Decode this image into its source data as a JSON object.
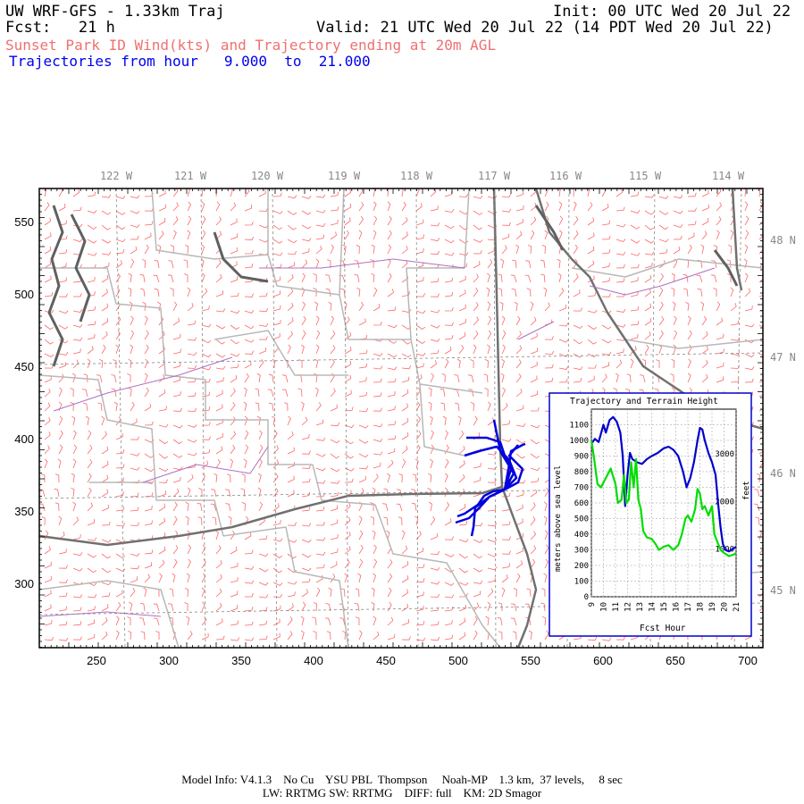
{
  "header": {
    "title": "UW WRF-GFS - 1.33km Traj",
    "init": "Init: 00 UTC Wed 20 Jul 22",
    "fcst_label": "Fcst:",
    "fcst_value": "21 h",
    "valid": "Valid: 21 UTC Wed 20 Jul 22 (14 PDT Wed 20 Jul 22)",
    "product": "Sunset Park ID Wind(kts) and Trajectory ending at 20m AGL",
    "traj_prefix": "Trajectories from hour",
    "traj_start": "9.000",
    "traj_to": "to",
    "traj_end": "21.000"
  },
  "map": {
    "lon_labels": [
      "122 W",
      "121 W",
      "120 W",
      "119 W",
      "118 W",
      "117 W",
      "116 W",
      "115 W",
      "114 W"
    ],
    "lat_labels": [
      "48 N",
      "47 N",
      "46 N",
      "45 N"
    ],
    "x_ticks": [
      "250",
      "300",
      "350",
      "400",
      "450",
      "500",
      "550",
      "600",
      "650",
      "700"
    ],
    "y_ticks": [
      "550",
      "500",
      "450",
      "400",
      "350",
      "300"
    ],
    "colors": {
      "wind_barbs": "#ff6666",
      "trajectory": "#0000dd",
      "borders": "#aaaaaa",
      "coast": "#666666"
    }
  },
  "inset": {
    "title": "Trajectory and Terrain Height",
    "xlabel": "Fcst Hour",
    "ylabel_left": "meters above sea level",
    "ylabel_right": "feet",
    "x_ticks": [
      "9",
      "10",
      "11",
      "12",
      "13",
      "14",
      "15",
      "16",
      "17",
      "18",
      "19",
      "20",
      "21"
    ],
    "y_ticks": [
      "0",
      "100",
      "200",
      "300",
      "400",
      "500",
      "600",
      "700",
      "800",
      "900",
      "1000",
      "1100"
    ],
    "y_ticks_right": [
      "1000",
      "2000",
      "3000"
    ],
    "colors": {
      "trajectory": "#0000cc",
      "terrain": "#00dd00"
    }
  },
  "chart_data": {
    "type": "line",
    "title": "Trajectory and Terrain Height",
    "xlabel": "Fcst Hour",
    "ylabel": "meters above sea level",
    "xlim": [
      9,
      21
    ],
    "ylim": [
      0,
      1200
    ],
    "grid": true,
    "series": [
      {
        "values": [
          [
            9,
            980
          ],
          [
            9.3,
            1010
          ],
          [
            9.6,
            990
          ],
          [
            10,
            1100
          ],
          [
            10.2,
            1050
          ],
          [
            10.5,
            1130
          ],
          [
            10.8,
            1150
          ],
          [
            11.1,
            1120
          ],
          [
            11.4,
            1050
          ],
          [
            11.6,
            900
          ],
          [
            11.8,
            580
          ],
          [
            12,
            780
          ],
          [
            12.2,
            920
          ],
          [
            12.4,
            880
          ],
          [
            12.8,
            860
          ],
          [
            13.2,
            850
          ],
          [
            13.6,
            880
          ],
          [
            14,
            900
          ],
          [
            14.5,
            920
          ],
          [
            15,
            950
          ],
          [
            15.4,
            960
          ],
          [
            15.8,
            940
          ],
          [
            16.2,
            900
          ],
          [
            16.6,
            800
          ],
          [
            16.9,
            700
          ],
          [
            17.2,
            760
          ],
          [
            17.5,
            860
          ],
          [
            17.8,
            1000
          ],
          [
            18,
            1080
          ],
          [
            18.2,
            1070
          ],
          [
            18.4,
            1000
          ],
          [
            18.7,
            920
          ],
          [
            19,
            860
          ],
          [
            19.3,
            780
          ],
          [
            19.5,
            600
          ],
          [
            19.7,
            450
          ],
          [
            19.9,
            340
          ],
          [
            20.1,
            300
          ],
          [
            20.4,
            290
          ],
          [
            20.8,
            310
          ],
          [
            21,
            320
          ]
        ]
      },
      {
        "values": [
          [
            9,
            1000
          ],
          [
            9.2,
            900
          ],
          [
            9.5,
            720
          ],
          [
            9.8,
            700
          ],
          [
            10.2,
            760
          ],
          [
            10.6,
            820
          ],
          [
            11,
            720
          ],
          [
            11.2,
            600
          ],
          [
            11.5,
            620
          ],
          [
            11.7,
            780
          ],
          [
            11.9,
            600
          ],
          [
            12.1,
            620
          ],
          [
            12.3,
            860
          ],
          [
            12.5,
            700
          ],
          [
            12.7,
            880
          ],
          [
            12.9,
            620
          ],
          [
            13.1,
            560
          ],
          [
            13.3,
            420
          ],
          [
            13.6,
            380
          ],
          [
            14,
            370
          ],
          [
            14.3,
            340
          ],
          [
            14.6,
            300
          ],
          [
            15,
            320
          ],
          [
            15.4,
            330
          ],
          [
            15.8,
            300
          ],
          [
            16.2,
            330
          ],
          [
            16.5,
            400
          ],
          [
            16.8,
            500
          ],
          [
            17,
            520
          ],
          [
            17.3,
            480
          ],
          [
            17.6,
            560
          ],
          [
            17.8,
            690
          ],
          [
            18,
            660
          ],
          [
            18.2,
            560
          ],
          [
            18.4,
            580
          ],
          [
            18.7,
            520
          ],
          [
            19,
            580
          ],
          [
            19.2,
            400
          ],
          [
            19.4,
            360
          ],
          [
            19.7,
            300
          ],
          [
            20,
            280
          ],
          [
            20.4,
            260
          ],
          [
            20.8,
            270
          ],
          [
            21,
            280
          ]
        ]
      }
    ]
  },
  "footer": {
    "line1": "Model Info: V4.1.3    No Cu    YSU PBL  Thompson     Noah-MP    1.3 km,  37 levels,     8 sec",
    "line2": "LW: RRTMG SW: RRTMG    DIFF: full    KM: 2D Smagor"
  }
}
